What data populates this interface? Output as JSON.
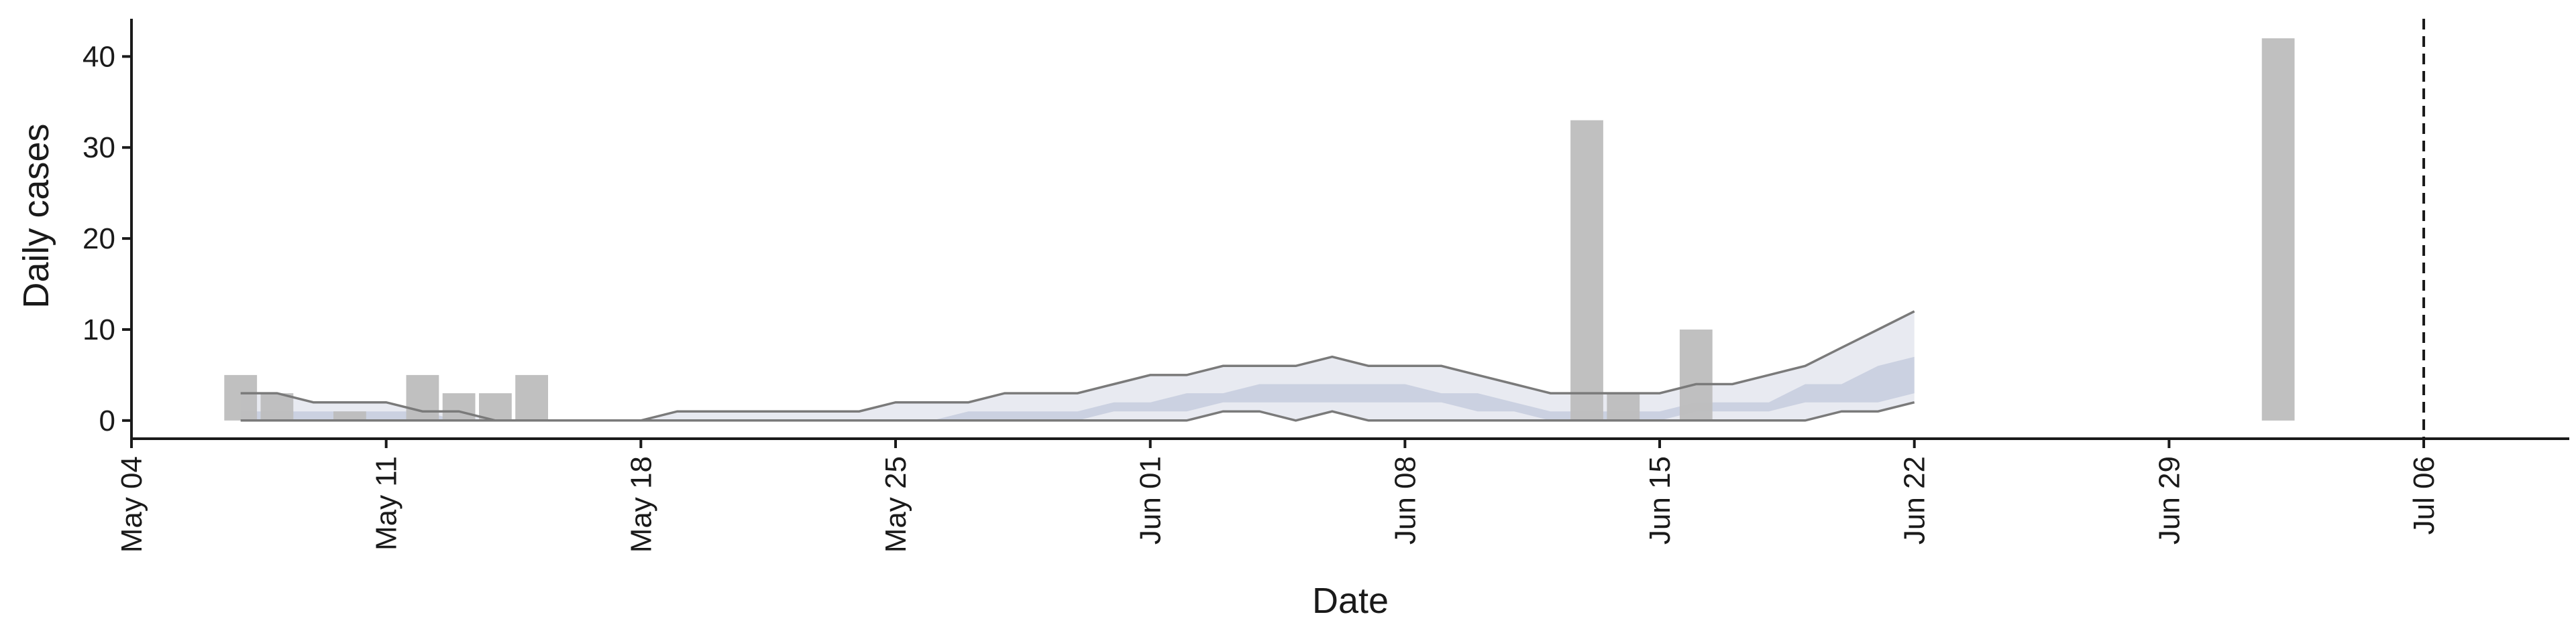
{
  "chart_data": {
    "type": "bar",
    "xlabel": "Date",
    "ylabel": "Daily cases",
    "xlim": [
      "2020-05-04",
      "2020-07-10"
    ],
    "ylim": [
      -2,
      44
    ],
    "x_ticks": [
      {
        "date": "2020-05-04",
        "label": "May 04"
      },
      {
        "date": "2020-05-11",
        "label": "May 11"
      },
      {
        "date": "2020-05-18",
        "label": "May 18"
      },
      {
        "date": "2020-05-25",
        "label": "May 25"
      },
      {
        "date": "2020-06-01",
        "label": "Jun 01"
      },
      {
        "date": "2020-06-08",
        "label": "Jun 08"
      },
      {
        "date": "2020-06-15",
        "label": "Jun 15"
      },
      {
        "date": "2020-06-22",
        "label": "Jun 22"
      },
      {
        "date": "2020-06-29",
        "label": "Jun 29"
      },
      {
        "date": "2020-07-06",
        "label": "Jul 06"
      }
    ],
    "y_ticks": [
      0,
      10,
      20,
      30,
      40
    ],
    "grid": false,
    "colors": {
      "bars": "#bdbdbd",
      "band_outer": "#e8eaf1",
      "band_inner": "#c8cedf",
      "lines": "#7a7a7a",
      "axis": "#1a1a1a"
    },
    "daily_cases": [
      {
        "date": "2020-05-07",
        "value": 5
      },
      {
        "date": "2020-05-08",
        "value": 3
      },
      {
        "date": "2020-05-10",
        "value": 1
      },
      {
        "date": "2020-05-12",
        "value": 5
      },
      {
        "date": "2020-05-13",
        "value": 3
      },
      {
        "date": "2020-05-14",
        "value": 3
      },
      {
        "date": "2020-05-15",
        "value": 5
      },
      {
        "date": "2020-06-13",
        "value": 33
      },
      {
        "date": "2020-06-14",
        "value": 3
      },
      {
        "date": "2020-06-16",
        "value": 10
      },
      {
        "date": "2020-07-02",
        "value": 42
      }
    ],
    "estimate": {
      "dates": [
        "2020-05-07",
        "2020-05-08",
        "2020-05-09",
        "2020-05-10",
        "2020-05-11",
        "2020-05-12",
        "2020-05-13",
        "2020-05-14",
        "2020-05-15",
        "2020-05-16",
        "2020-05-17",
        "2020-05-18",
        "2020-05-19",
        "2020-05-20",
        "2020-05-21",
        "2020-05-22",
        "2020-05-23",
        "2020-05-24",
        "2020-05-25",
        "2020-05-26",
        "2020-05-27",
        "2020-05-28",
        "2020-05-29",
        "2020-05-30",
        "2020-05-31",
        "2020-06-01",
        "2020-06-02",
        "2020-06-03",
        "2020-06-04",
        "2020-06-05",
        "2020-06-06",
        "2020-06-07",
        "2020-06-08",
        "2020-06-09",
        "2020-06-10",
        "2020-06-11",
        "2020-06-12",
        "2020-06-13",
        "2020-06-14",
        "2020-06-15",
        "2020-06-16",
        "2020-06-17",
        "2020-06-18",
        "2020-06-19",
        "2020-06-20",
        "2020-06-21",
        "2020-06-22"
      ],
      "upper": [
        3,
        3,
        2,
        2,
        2,
        1,
        1,
        0,
        0,
        0,
        0,
        0,
        1,
        1,
        1,
        1,
        1,
        1,
        2,
        2,
        2,
        3,
        3,
        3,
        4,
        5,
        5,
        6,
        6,
        6,
        7,
        6,
        6,
        6,
        5,
        4,
        3,
        3,
        3,
        3,
        4,
        4,
        5,
        6,
        8,
        10,
        12
      ],
      "lower": [
        0,
        0,
        0,
        0,
        0,
        0,
        0,
        0,
        0,
        0,
        0,
        0,
        0,
        0,
        0,
        0,
        0,
        0,
        0,
        0,
        0,
        0,
        0,
        0,
        0,
        0,
        0,
        1,
        1,
        0,
        1,
        0,
        0,
        0,
        0,
        0,
        0,
        0,
        0,
        0,
        0,
        0,
        0,
        0,
        1,
        1,
        2
      ],
      "inner_upper": [
        1,
        1,
        1,
        1,
        1,
        1,
        0,
        0,
        0,
        0,
        0,
        0,
        0,
        0,
        0,
        0,
        0,
        0,
        0,
        0,
        1,
        1,
        1,
        1,
        2,
        2,
        3,
        3,
        4,
        4,
        4,
        4,
        4,
        3,
        3,
        2,
        1,
        1,
        1,
        1,
        2,
        2,
        2,
        4,
        4,
        6,
        7
      ],
      "inner_lower": [
        0,
        0,
        0,
        0,
        0,
        0,
        0,
        0,
        0,
        0,
        0,
        0,
        0,
        0,
        0,
        0,
        0,
        0,
        0,
        0,
        0,
        0,
        0,
        0,
        1,
        1,
        1,
        2,
        2,
        2,
        2,
        2,
        2,
        2,
        1,
        1,
        0,
        0,
        0,
        0,
        1,
        1,
        1,
        2,
        2,
        2,
        3
      ]
    },
    "vline": {
      "date": "2020-07-06",
      "style": "dashed"
    }
  }
}
